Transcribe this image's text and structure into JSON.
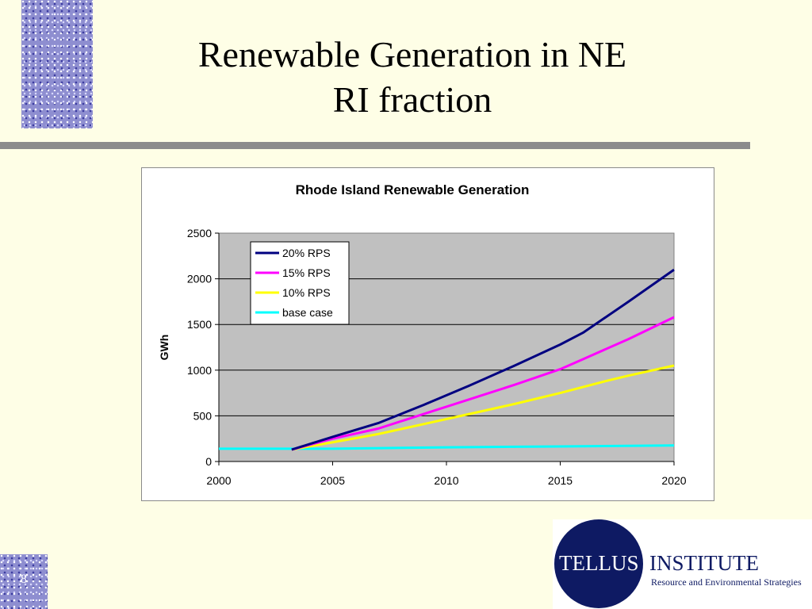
{
  "slide": {
    "title_line1": "Renewable Generation in NE",
    "title_line2": "RI fraction",
    "page_number": "8"
  },
  "logo": {
    "circle_text": "TELLUS",
    "institute_text": "INSTITUTE",
    "subtitle": "Resource and Environmental Strategies",
    "color": "#0e1a63"
  },
  "chart_data": {
    "type": "line",
    "title": "Rhode Island Renewable Generation",
    "xlabel": "",
    "ylabel": "GWh",
    "xlim": [
      2000,
      2020
    ],
    "ylim": [
      0,
      2500
    ],
    "x_ticks": [
      2000,
      2005,
      2010,
      2015,
      2020
    ],
    "y_ticks": [
      0,
      500,
      1000,
      1500,
      2000,
      2500
    ],
    "grid": "horizontal",
    "legend_position": "top-left",
    "plot_background": "#c0c0c0",
    "series": [
      {
        "name": "20% RPS",
        "color": "#000080",
        "points": [
          [
            2003.2,
            130
          ],
          [
            2005,
            270
          ],
          [
            2007,
            420
          ],
          [
            2009,
            620
          ],
          [
            2011,
            830
          ],
          [
            2013,
            1050
          ],
          [
            2015,
            1280
          ],
          [
            2016,
            1410
          ],
          [
            2018,
            1750
          ],
          [
            2020,
            2100
          ]
        ]
      },
      {
        "name": "15% RPS",
        "color": "#ff00ff",
        "points": [
          [
            2003.2,
            130
          ],
          [
            2005,
            250
          ],
          [
            2007,
            360
          ],
          [
            2009,
            520
          ],
          [
            2011,
            680
          ],
          [
            2013,
            840
          ],
          [
            2015,
            1010
          ],
          [
            2016,
            1120
          ],
          [
            2018,
            1340
          ],
          [
            2020,
            1580
          ]
        ]
      },
      {
        "name": "10% RPS",
        "color": "#ffff00",
        "points": [
          [
            2003.2,
            130
          ],
          [
            2005,
            210
          ],
          [
            2007,
            300
          ],
          [
            2009,
            410
          ],
          [
            2011,
            520
          ],
          [
            2013,
            630
          ],
          [
            2015,
            750
          ],
          [
            2017,
            880
          ],
          [
            2018,
            940
          ],
          [
            2020,
            1050
          ]
        ]
      },
      {
        "name": "base case",
        "color": "#00ffff",
        "points": [
          [
            2000,
            140
          ],
          [
            2005,
            140
          ],
          [
            2010,
            155
          ],
          [
            2015,
            165
          ],
          [
            2020,
            175
          ]
        ]
      }
    ]
  }
}
